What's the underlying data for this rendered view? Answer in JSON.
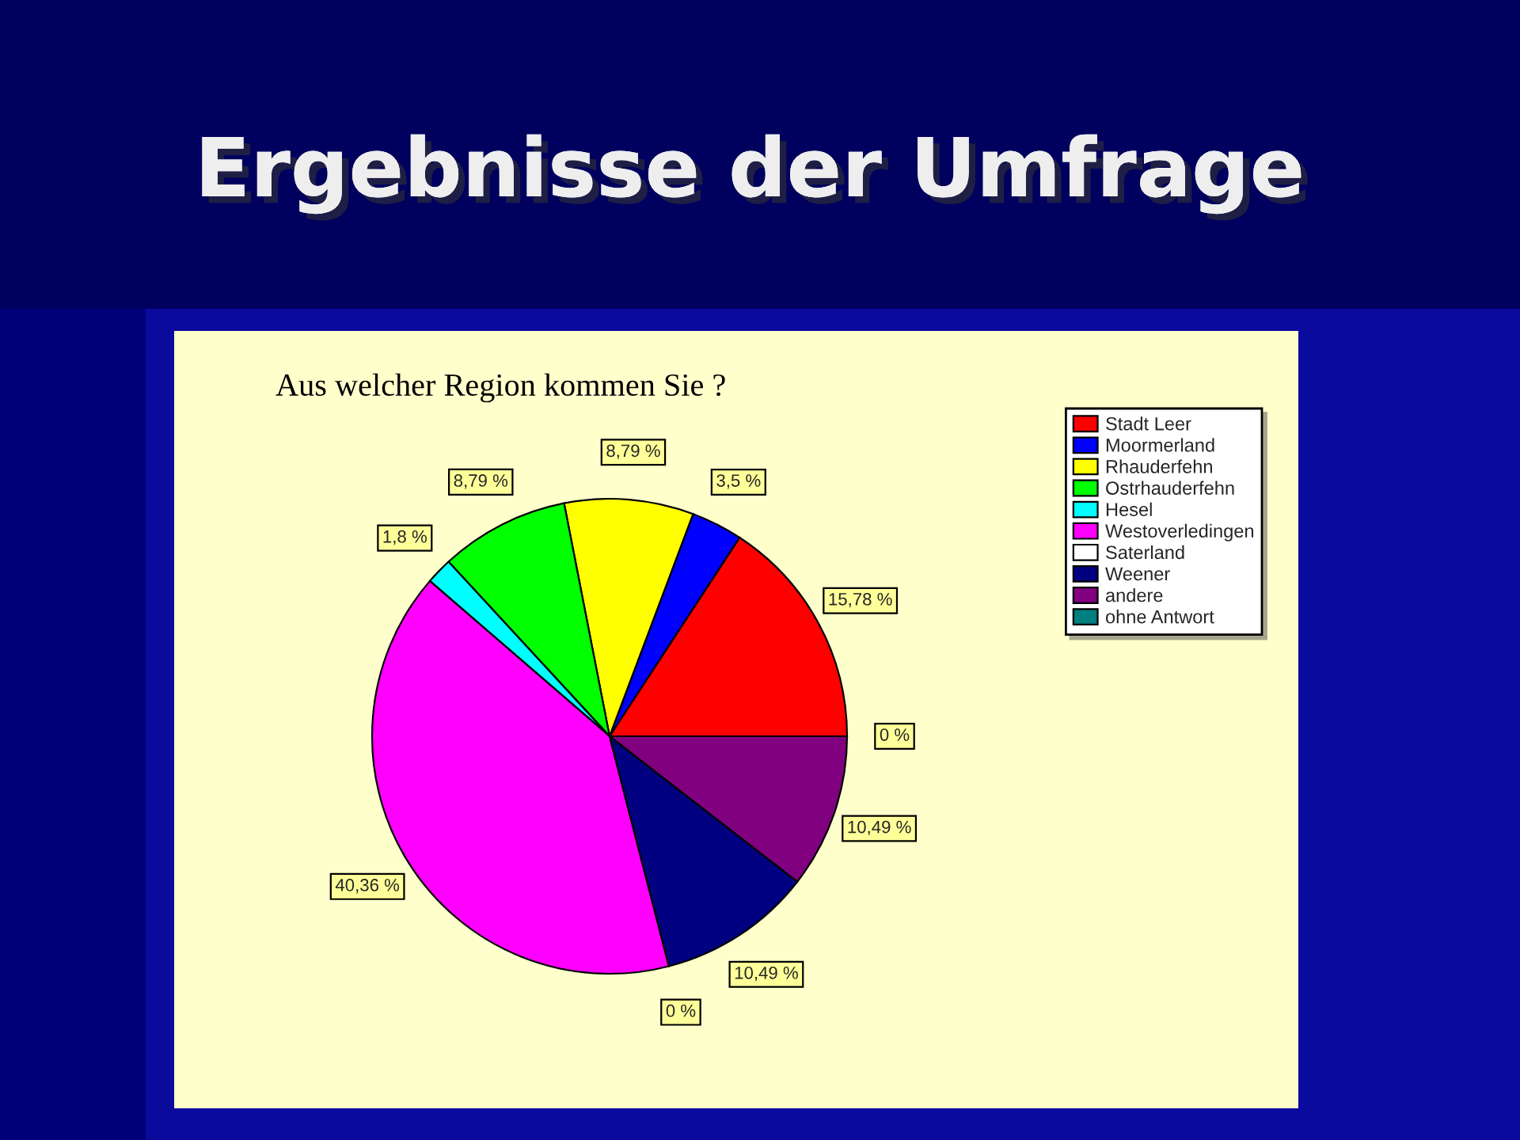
{
  "chart_data": {
    "type": "pie",
    "title": "Ergebnisse der Umfrage",
    "subtitle": "Aus welcher Region kommen Sie ?",
    "categories": [
      "Stadt Leer",
      "Moormerland",
      "Rhauderfehn",
      "Ostrhauderfehn",
      "Hesel",
      "Westoverledingen",
      "Saterland",
      "Weener",
      "andere",
      "ohne Antwort"
    ],
    "values": [
      15.78,
      3.5,
      8.79,
      8.79,
      1.8,
      40.36,
      0,
      10.49,
      10.49,
      0
    ],
    "colors": [
      "#ff0000",
      "#0000ff",
      "#ffff00",
      "#00ff00",
      "#00ffff",
      "#ff00ff",
      "#ffffff",
      "#000080",
      "#800080",
      "#008080"
    ],
    "value_labels": [
      "15,78 %",
      "3,5 %",
      "8,79 %",
      "8,79 %",
      "1,8 %",
      "40,36 %",
      "0 %",
      "10,49 %",
      "10,49 %",
      "0 %"
    ],
    "legend": "top right"
  }
}
